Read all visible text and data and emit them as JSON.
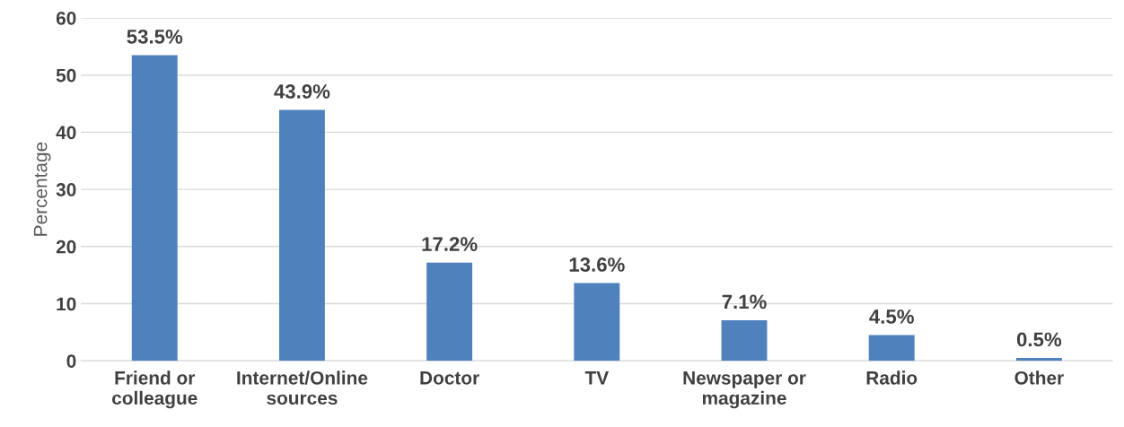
{
  "chart_data": {
    "type": "bar",
    "ylabel": "Percentage",
    "categories": [
      "Friend or colleague",
      "Internet/Online sources",
      "Doctor",
      "TV",
      "Newspaper or magazine",
      "Radio",
      "Other"
    ],
    "values": [
      53.5,
      43.9,
      17.2,
      13.6,
      7.1,
      4.5,
      0.5
    ],
    "value_labels": [
      "53.5%",
      "43.9%",
      "17.2%",
      "13.6%",
      "7.1%",
      "4.5%",
      "0.5%"
    ],
    "color": "#4f81bd",
    "ylim": [
      0,
      60
    ],
    "yticks": [
      0,
      10,
      20,
      30,
      40,
      50,
      60
    ],
    "grid": "y"
  }
}
